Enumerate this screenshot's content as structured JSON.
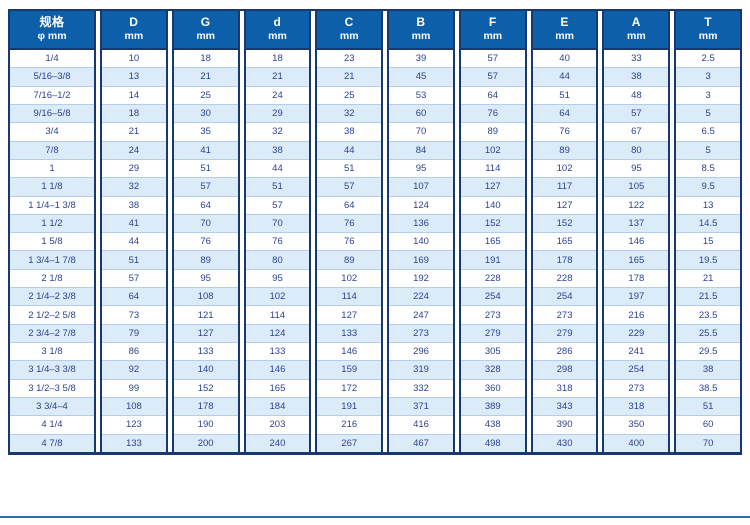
{
  "colors": {
    "header_bg": "#0d5fa9",
    "header_text": "#ffffff",
    "border_navy": "#17396f",
    "cell_text": "#2c4291",
    "alt_row_bg": "#dcebf8",
    "row_separator": "#b4cde9",
    "bottom_rule": "#2c6cb5"
  },
  "table": {
    "columns": [
      {
        "label": "规格",
        "sub": "φ mm"
      },
      {
        "label": "D",
        "sub": "mm"
      },
      {
        "label": "G",
        "sub": "mm"
      },
      {
        "label": "d",
        "sub": "mm"
      },
      {
        "label": "C",
        "sub": "mm"
      },
      {
        "label": "B",
        "sub": "mm"
      },
      {
        "label": "F",
        "sub": "mm"
      },
      {
        "label": "E",
        "sub": "mm"
      },
      {
        "label": "A",
        "sub": "mm"
      },
      {
        "label": "T",
        "sub": "mm"
      }
    ],
    "rows": [
      [
        "1/4",
        "10",
        "18",
        "18",
        "23",
        "39",
        "57",
        "40",
        "33",
        "2.5"
      ],
      [
        "5/16–3/8",
        "13",
        "21",
        "21",
        "21",
        "45",
        "57",
        "44",
        "38",
        "3"
      ],
      [
        "7/16–1/2",
        "14",
        "25",
        "24",
        "25",
        "53",
        "64",
        "51",
        "48",
        "3"
      ],
      [
        "9/16–5/8",
        "18",
        "30",
        "29",
        "32",
        "60",
        "76",
        "64",
        "57",
        "5"
      ],
      [
        "3/4",
        "21",
        "35",
        "32",
        "38",
        "70",
        "89",
        "76",
        "67",
        "6.5"
      ],
      [
        "7/8",
        "24",
        "41",
        "38",
        "44",
        "84",
        "102",
        "89",
        "80",
        "5"
      ],
      [
        "1",
        "29",
        "51",
        "44",
        "51",
        "95",
        "114",
        "102",
        "95",
        "8.5"
      ],
      [
        "1 1/8",
        "32",
        "57",
        "51",
        "57",
        "107",
        "127",
        "117",
        "105",
        "9.5"
      ],
      [
        "1 1/4–1 3/8",
        "38",
        "64",
        "57",
        "64",
        "124",
        "140",
        "127",
        "122",
        "13"
      ],
      [
        "1 1/2",
        "41",
        "70",
        "70",
        "76",
        "136",
        "152",
        "152",
        "137",
        "14.5"
      ],
      [
        "1 5/8",
        "44",
        "76",
        "76",
        "76",
        "140",
        "165",
        "165",
        "146",
        "15"
      ],
      [
        "1 3/4–1 7/8",
        "51",
        "89",
        "80",
        "89",
        "169",
        "191",
        "178",
        "165",
        "19.5"
      ],
      [
        "2 1/8",
        "57",
        "95",
        "95",
        "102",
        "192",
        "228",
        "228",
        "178",
        "21"
      ],
      [
        "2 1/4–2 3/8",
        "64",
        "108",
        "102",
        "114",
        "224",
        "254",
        "254",
        "197",
        "21.5"
      ],
      [
        "2 1/2–2 5/8",
        "73",
        "121",
        "114",
        "127",
        "247",
        "273",
        "273",
        "216",
        "23.5"
      ],
      [
        "2 3/4–2 7/8",
        "79",
        "127",
        "124",
        "133",
        "273",
        "279",
        "279",
        "229",
        "25.5"
      ],
      [
        "3 1/8",
        "86",
        "133",
        "133",
        "146",
        "296",
        "305",
        "286",
        "241",
        "29.5"
      ],
      [
        "3 1/4–3 3/8",
        "92",
        "140",
        "146",
        "159",
        "319",
        "328",
        "298",
        "254",
        "38"
      ],
      [
        "3 1/2–3 5/8",
        "99",
        "152",
        "165",
        "172",
        "332",
        "360",
        "318",
        "273",
        "38.5"
      ],
      [
        "3 3/4–4",
        "108",
        "178",
        "184",
        "191",
        "371",
        "389",
        "343",
        "318",
        "51"
      ],
      [
        "4 1/4",
        "123",
        "190",
        "203",
        "216",
        "416",
        "438",
        "390",
        "350",
        "60"
      ],
      [
        "4 7/8",
        "133",
        "200",
        "240",
        "267",
        "467",
        "498",
        "430",
        "400",
        "70"
      ]
    ]
  }
}
